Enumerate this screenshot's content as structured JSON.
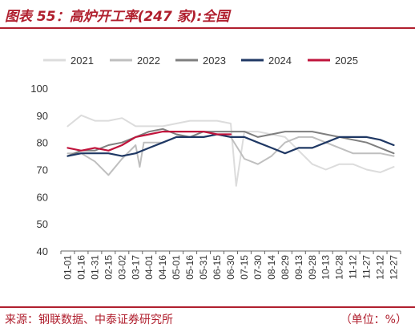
{
  "header": {
    "title": "图表 55：高炉开工率(247 家):全国"
  },
  "footer": {
    "source": "来源：钢联数据、中泰证券研究所",
    "unit": "（单位：%）"
  },
  "chart_data": {
    "type": "line",
    "title": "高炉开工率(247 家):全国",
    "ylabel": "",
    "xlabel": "",
    "ylim": [
      40,
      100
    ],
    "yticks": [
      40,
      50,
      60,
      70,
      80,
      90,
      100
    ],
    "categories": [
      "01-01",
      "01-16",
      "01-31",
      "02-15",
      "03-02",
      "03-17",
      "04-01",
      "04-16",
      "05-01",
      "05-16",
      "05-31",
      "06-15",
      "06-30",
      "07-15",
      "07-30",
      "08-14",
      "08-29",
      "09-13",
      "09-28",
      "10-13",
      "10-28",
      "11-12",
      "11-27",
      "12-12",
      "12-27"
    ],
    "grid": false,
    "legend_position": "top",
    "series": [
      {
        "name": "2021",
        "color": "#dcdcdc",
        "x": [
          0,
          1,
          2,
          3,
          4,
          5,
          6,
          7,
          8,
          9,
          10,
          11,
          12,
          12.4,
          13,
          14,
          15,
          16,
          17,
          18,
          19,
          20,
          21,
          22,
          23,
          24
        ],
        "values": [
          86,
          90,
          88,
          88,
          89,
          86,
          86,
          86,
          87,
          88,
          88,
          88,
          87,
          64,
          84,
          84,
          83,
          82,
          77,
          72,
          70,
          72,
          72,
          70,
          69,
          71
        ]
      },
      {
        "name": "2022",
        "color": "#bfbfbf",
        "x": [
          0,
          1,
          2,
          3,
          4,
          5,
          5.3,
          5.6,
          6,
          7,
          8,
          9,
          10,
          11,
          12,
          13,
          14,
          15,
          16,
          17,
          18,
          19,
          20,
          21,
          22,
          23,
          24
        ],
        "values": [
          76,
          76,
          73,
          68,
          74,
          79,
          71,
          80,
          80,
          80,
          82,
          82,
          82,
          83,
          82,
          74,
          72,
          75,
          80,
          82,
          82,
          80,
          78,
          76,
          76,
          76,
          75
        ]
      },
      {
        "name": "2023",
        "color": "#7f7f7f",
        "x": [
          0,
          1,
          2,
          3,
          4,
          5,
          6,
          7,
          8,
          9,
          10,
          11,
          12,
          13,
          14,
          15,
          16,
          17,
          18,
          19,
          20,
          21,
          22,
          23,
          24
        ],
        "values": [
          75,
          77,
          77,
          79,
          80,
          82,
          84,
          85,
          83,
          82,
          84,
          84,
          84,
          84,
          82,
          83,
          84,
          84,
          84,
          83,
          82,
          81,
          80,
          78,
          76
        ]
      },
      {
        "name": "2024",
        "color": "#1f3864",
        "x": [
          0,
          1,
          2,
          3,
          4,
          5,
          6,
          7,
          8,
          9,
          10,
          11,
          12,
          13,
          14,
          15,
          16,
          17,
          18,
          19,
          20,
          21,
          22,
          23,
          24
        ],
        "values": [
          75,
          76,
          76,
          76,
          75,
          76,
          78,
          80,
          82,
          82,
          82,
          83,
          82,
          82,
          80,
          78,
          76,
          78,
          78,
          80,
          82,
          82,
          82,
          81,
          79
        ]
      },
      {
        "name": "2025",
        "color": "#c0143c",
        "x": [
          0,
          1,
          2,
          3,
          4,
          5,
          6,
          7,
          8,
          9,
          10,
          11,
          12
        ],
        "values": [
          78,
          77,
          78,
          77,
          79,
          82,
          83,
          84,
          84,
          84,
          84,
          83,
          83
        ]
      }
    ]
  }
}
